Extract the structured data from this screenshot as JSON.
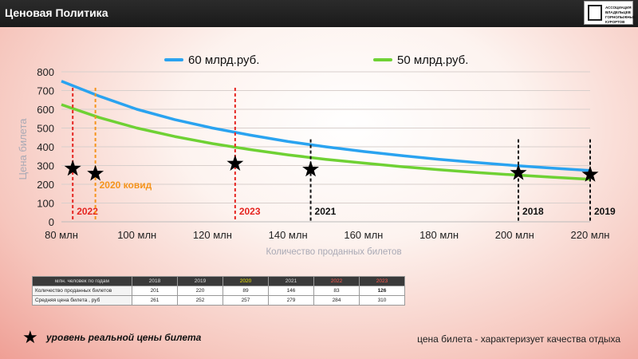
{
  "header": {
    "title": "Ценовая Политика",
    "logo_text": [
      "АССОЦИАЦИЯ",
      "ВЛАДЕЛЬЦЕВ",
      "ГОРНОЛЫЖНЫХ",
      "КУРОРТОВ"
    ]
  },
  "chart_data": {
    "type": "line",
    "xlabel": "Количество проданных билетов",
    "ylabel": "Цена билета",
    "xlim": [
      80,
      220
    ],
    "ylim": [
      0,
      800
    ],
    "x_ticks": [
      80,
      100,
      120,
      140,
      160,
      180,
      200,
      220
    ],
    "x_tick_labels": [
      "80 млн",
      "100 млн",
      "120 млн",
      "140 млн",
      "160 млн",
      "180 млн",
      "200 млн",
      "220 млн"
    ],
    "y_ticks": [
      0,
      100,
      200,
      300,
      400,
      500,
      600,
      700,
      800
    ],
    "y_tick_labels": [
      "0",
      "100",
      "200",
      "300",
      "400",
      "500",
      "600",
      "700",
      "800"
    ],
    "series": [
      {
        "name": "60 млрд.руб.",
        "color": "#2aa3f0",
        "x": [
          80,
          90,
          100,
          110,
          120,
          130,
          140,
          150,
          160,
          170,
          180,
          190,
          200,
          210,
          220
        ],
        "y": [
          750,
          670,
          600,
          545,
          500,
          462,
          428,
          400,
          375,
          353,
          333,
          316,
          300,
          286,
          273
        ]
      },
      {
        "name": "50 млрд.руб.",
        "color": "#6fd134",
        "x": [
          80,
          90,
          100,
          110,
          120,
          130,
          140,
          150,
          160,
          170,
          180,
          190,
          200,
          210,
          220
        ],
        "y": [
          625,
          556,
          500,
          455,
          417,
          385,
          357,
          333,
          313,
          294,
          278,
          263,
          250,
          238,
          227
        ]
      }
    ],
    "markers": [
      {
        "year": "2022",
        "label": "2022",
        "x": 83,
        "y": 284,
        "color": "#e52521",
        "label_y": 0
      },
      {
        "year": "2020",
        "label": "2020 ковид",
        "x": 89,
        "y": 257,
        "color": "#f5941d",
        "label_y": 140
      },
      {
        "year": "2023",
        "label": "2023",
        "x": 126,
        "y": 310,
        "color": "#e52521",
        "label_y": 0
      },
      {
        "year": "2021",
        "label": "2021",
        "x": 146,
        "y": 279,
        "color": "#111111",
        "label_y": 0
      },
      {
        "year": "2018",
        "label": "2018",
        "x": 201,
        "y": 261,
        "color": "#111111",
        "label_y": 0
      },
      {
        "year": "2019",
        "label": "2019",
        "x": 220,
        "y": 252,
        "color": "#111111",
        "label_y": 0
      }
    ]
  },
  "table": {
    "header": [
      "млн. человек по годам",
      "2018",
      "2019",
      "2020",
      "2021",
      "2022",
      "2023"
    ],
    "header_colors": [
      "#dddddd",
      "#dddddd",
      "#dddddd",
      "#f2e600",
      "#dddddd",
      "#ff5a4f",
      "#ff5a4f"
    ],
    "rows": [
      [
        "Количество проданных билетов",
        "201",
        "220",
        "89",
        "146",
        "83",
        "126"
      ],
      [
        "Средняя цена билета , руб",
        "261",
        "252",
        "257",
        "279",
        "284",
        "310"
      ]
    ]
  },
  "legend": {
    "star": "★",
    "text": "уровень реальной цены билета"
  },
  "footnote": "цена билета -  характеризует  качества отдыха"
}
